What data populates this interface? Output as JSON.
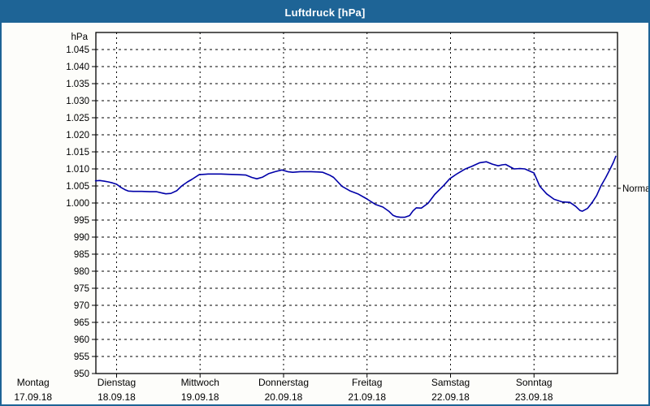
{
  "window": {
    "title": "Luftdruck [hPa]"
  },
  "colors": {
    "titlebar_bg": "#1e6496",
    "border": "#1e6496",
    "window_bg": "#fdfdfa",
    "plot_bg": "#ffffff",
    "grid": "#000000",
    "line": "#0000a8",
    "text": "#000000",
    "title_text": "#ffffff"
  },
  "chart_data": {
    "type": "line",
    "title": "Luftdruck [hPa]",
    "ylabel": "hPa",
    "ylim": [
      950,
      1050
    ],
    "y_tick_step": 5,
    "grid": "dashed",
    "legend_position": "none",
    "x_visible_range": [
      0.752,
      7
    ],
    "x_gridline_us": [
      1,
      2,
      3,
      4,
      5,
      6
    ],
    "x_days": [
      {
        "name": "Montag",
        "date": "17.09.18",
        "u": 0
      },
      {
        "name": "Dienstag",
        "date": "18.09.18",
        "u": 1
      },
      {
        "name": "Mittwoch",
        "date": "19.09.18",
        "u": 2
      },
      {
        "name": "Donnerstag",
        "date": "20.09.18",
        "u": 3
      },
      {
        "name": "Freitag",
        "date": "21.09.18",
        "u": 4
      },
      {
        "name": "Samstag",
        "date": "22.09.18",
        "u": 5
      },
      {
        "name": "Sonntag",
        "date": "23.09.18",
        "u": 6
      }
    ],
    "y_ticks": [
      {
        "value": 950,
        "label": "950"
      },
      {
        "value": 955,
        "label": "955"
      },
      {
        "value": 960,
        "label": "960"
      },
      {
        "value": 965,
        "label": "965"
      },
      {
        "value": 970,
        "label": "970"
      },
      {
        "value": 975,
        "label": "975"
      },
      {
        "value": 980,
        "label": "980"
      },
      {
        "value": 985,
        "label": "985"
      },
      {
        "value": 990,
        "label": "990"
      },
      {
        "value": 995,
        "label": "995"
      },
      {
        "value": 1000,
        "label": "1.000"
      },
      {
        "value": 1005,
        "label": "1.005"
      },
      {
        "value": 1010,
        "label": "1.010"
      },
      {
        "value": 1015,
        "label": "1.015"
      },
      {
        "value": 1020,
        "label": "1.020"
      },
      {
        "value": 1025,
        "label": "1.025"
      },
      {
        "value": 1030,
        "label": "1.030"
      },
      {
        "value": 1035,
        "label": "1.035"
      },
      {
        "value": 1040,
        "label": "1.040"
      },
      {
        "value": 1045,
        "label": "1.045"
      }
    ],
    "annotations": [
      {
        "label": "Normal",
        "value": 1004.3,
        "position": "right"
      }
    ],
    "series": [
      {
        "name": "Luftdruck",
        "color": "#0000a8",
        "points": [
          [
            0.748,
            1006.5
          ],
          [
            0.8,
            1006.6
          ],
          [
            0.85,
            1006.4
          ],
          [
            0.9,
            1006.2
          ],
          [
            0.95,
            1005.9
          ],
          [
            1.0,
            1005.5
          ],
          [
            1.05,
            1004.6
          ],
          [
            1.1,
            1003.9
          ],
          [
            1.14,
            1003.5
          ],
          [
            1.2,
            1003.4
          ],
          [
            1.3,
            1003.4
          ],
          [
            1.4,
            1003.3
          ],
          [
            1.48,
            1003.3
          ],
          [
            1.55,
            1002.9
          ],
          [
            1.59,
            1002.7
          ],
          [
            1.65,
            1002.8
          ],
          [
            1.72,
            1003.6
          ],
          [
            1.78,
            1005.0
          ],
          [
            1.85,
            1006.2
          ],
          [
            1.9,
            1006.9
          ],
          [
            1.99,
            1008.3
          ],
          [
            2.1,
            1008.5
          ],
          [
            2.25,
            1008.5
          ],
          [
            2.34,
            1008.4
          ],
          [
            2.45,
            1008.3
          ],
          [
            2.55,
            1008.2
          ],
          [
            2.62,
            1007.5
          ],
          [
            2.68,
            1007.1
          ],
          [
            2.75,
            1007.6
          ],
          [
            2.82,
            1008.6
          ],
          [
            2.9,
            1009.2
          ],
          [
            2.98,
            1009.7
          ],
          [
            3.05,
            1009.2
          ],
          [
            3.11,
            1009.0
          ],
          [
            3.2,
            1009.2
          ],
          [
            3.33,
            1009.2
          ],
          [
            3.42,
            1009.1
          ],
          [
            3.47,
            1009.0
          ],
          [
            3.55,
            1008.2
          ],
          [
            3.6,
            1007.5
          ],
          [
            3.7,
            1004.9
          ],
          [
            3.8,
            1003.5
          ],
          [
            3.89,
            1002.7
          ],
          [
            3.99,
            1001.3
          ],
          [
            4.1,
            999.6
          ],
          [
            4.19,
            998.8
          ],
          [
            4.26,
            997.6
          ],
          [
            4.31,
            996.4
          ],
          [
            4.35,
            996.0
          ],
          [
            4.4,
            995.8
          ],
          [
            4.45,
            995.8
          ],
          [
            4.51,
            996.3
          ],
          [
            4.55,
            997.7
          ],
          [
            4.59,
            998.6
          ],
          [
            4.65,
            998.5
          ],
          [
            4.73,
            999.9
          ],
          [
            4.81,
            1002.5
          ],
          [
            4.92,
            1005.2
          ],
          [
            4.99,
            1007.1
          ],
          [
            5.08,
            1008.6
          ],
          [
            5.17,
            1009.9
          ],
          [
            5.26,
            1010.8
          ],
          [
            5.35,
            1011.8
          ],
          [
            5.43,
            1012.1
          ],
          [
            5.5,
            1011.4
          ],
          [
            5.57,
            1010.9
          ],
          [
            5.62,
            1011.2
          ],
          [
            5.66,
            1011.3
          ],
          [
            5.76,
            1010.0
          ],
          [
            5.83,
            1010.1
          ],
          [
            5.89,
            1010.0
          ],
          [
            6.0,
            1008.8
          ],
          [
            6.07,
            1004.9
          ],
          [
            6.15,
            1002.7
          ],
          [
            6.24,
            1001.1
          ],
          [
            6.34,
            1000.3
          ],
          [
            6.43,
            1000.2
          ],
          [
            6.5,
            999.0
          ],
          [
            6.55,
            997.8
          ],
          [
            6.58,
            997.6
          ],
          [
            6.64,
            998.4
          ],
          [
            6.69,
            999.9
          ],
          [
            6.75,
            1002.2
          ],
          [
            6.8,
            1004.9
          ],
          [
            6.86,
            1007.5
          ],
          [
            6.91,
            1009.9
          ],
          [
            6.95,
            1011.9
          ],
          [
            6.98,
            1013.7
          ]
        ]
      }
    ]
  }
}
